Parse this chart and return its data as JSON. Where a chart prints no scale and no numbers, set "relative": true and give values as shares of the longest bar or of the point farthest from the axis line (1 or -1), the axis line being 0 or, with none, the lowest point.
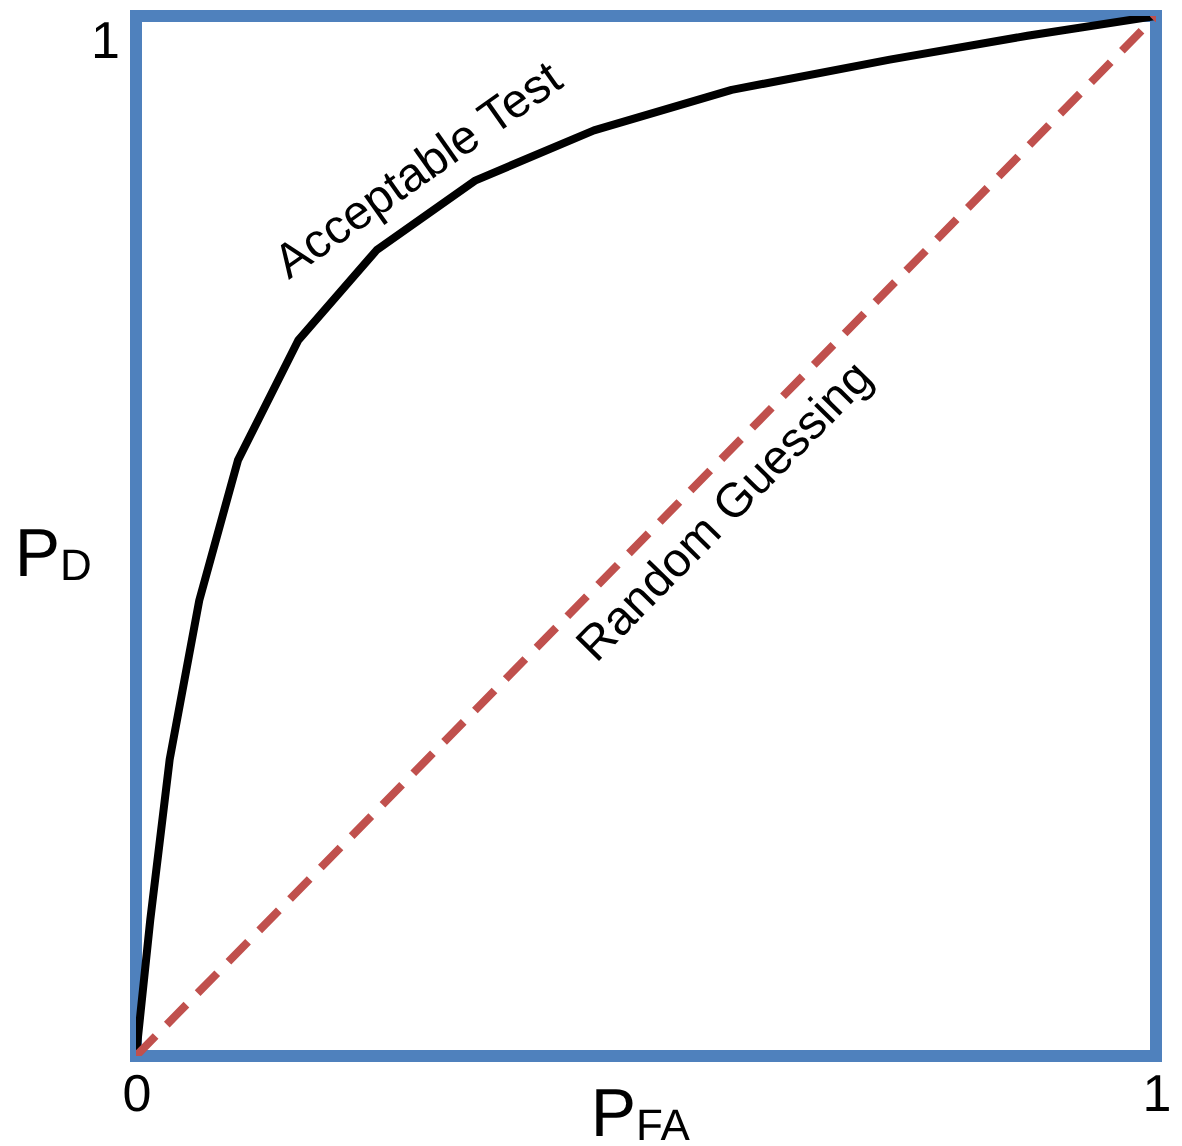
{
  "chart_data": {
    "type": "line",
    "xlabel": "P$_{FA}$",
    "ylabel": "P$_{D}$",
    "xlim": [
      0,
      1
    ],
    "xticks": [
      0,
      1
    ],
    "relative": true,
    "annotations": [
      "1"
    ],
    "grid": false,
    "legend": false,
    "marker": "none",
    "series": [
      {
        "name": "Acceptable Test",
        "color": "#000000",
        "line_style": "solid",
        "x": [
          0,
          0.014,
          0.033,
          0.062,
          0.1,
          0.159,
          0.236,
          0.333,
          0.449,
          0.584,
          0.739,
          0.874,
          1
        ],
        "values": [
          0,
          0.131,
          0.285,
          0.438,
          0.573,
          0.688,
          0.775,
          0.842,
          0.89,
          0.929,
          0.958,
          0.981,
          1
        ]
      },
      {
        "name": "Random Guessing",
        "color": "#c0504d",
        "line_style": "dashed",
        "x": [
          0,
          1
        ],
        "values": [
          0,
          1
        ]
      }
    ]
  }
}
